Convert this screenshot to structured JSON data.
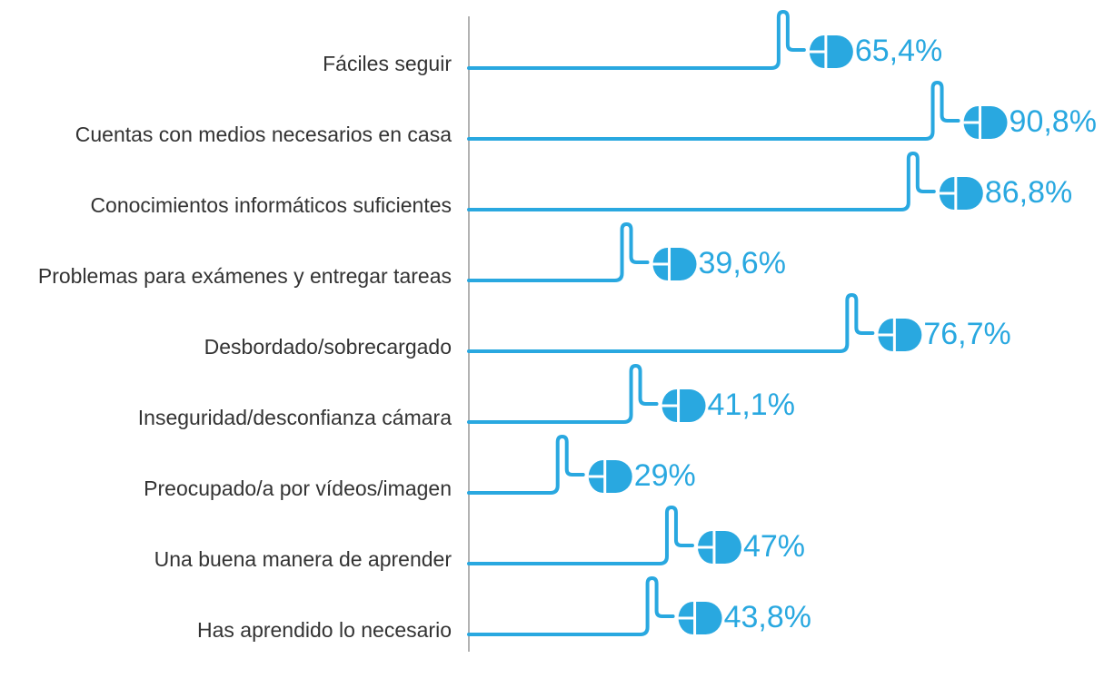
{
  "chart_data": {
    "type": "bar",
    "categories": [
      "Fáciles seguir",
      "Cuentas con medios necesarios en casa",
      "Conocimientos informáticos suficientes",
      "Problemas para exámenes y entregar tareas",
      "Desbordado/sobrecargado",
      "Inseguridad/desconfianza cámara",
      "Preocupado/a por vídeos/imagen",
      "Una buena manera de aprender",
      "Has aprendido lo necesario"
    ],
    "values": [
      65.4,
      90.8,
      86.8,
      39.6,
      76.7,
      41.1,
      29,
      47,
      43.8
    ],
    "value_labels": [
      "65,4%",
      "90,8%",
      "86,8%",
      "39,6%",
      "76,7%",
      "41,1%",
      "29%",
      "47%",
      "43,8%"
    ],
    "color": "#29a8e0"
  }
}
